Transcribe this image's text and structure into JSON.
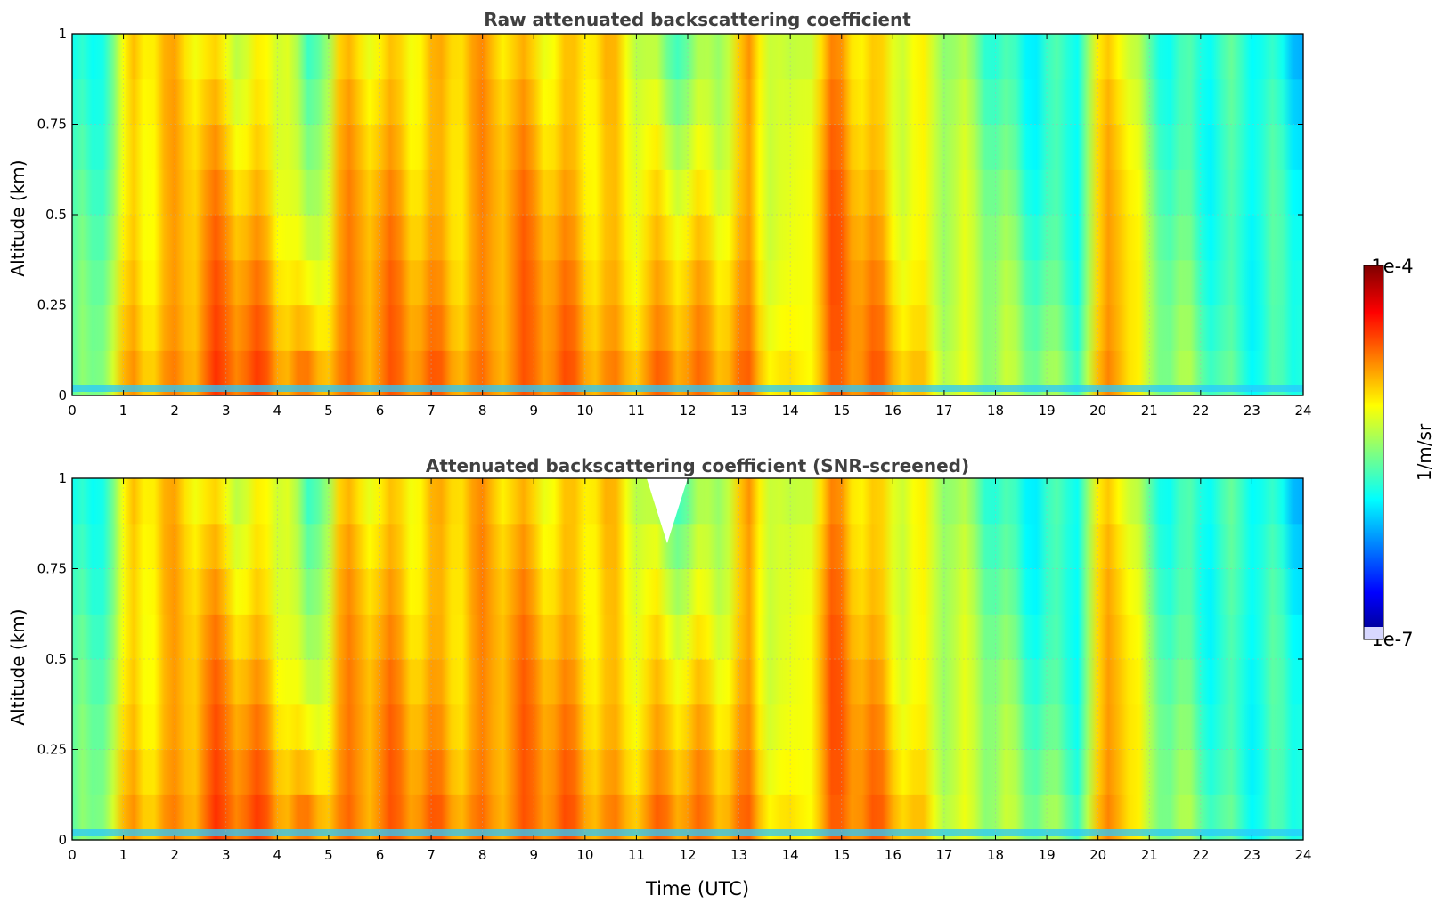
{
  "chart_data": [
    {
      "type": "heatmap",
      "title": "Raw attenuated backscattering coefficient",
      "ylabel": "Altitude (km)",
      "xlabel": "",
      "xlim": [
        0,
        24
      ],
      "ylim": [
        0,
        1
      ],
      "x_ticks": [
        "0",
        "1",
        "2",
        "3",
        "4",
        "5",
        "6",
        "7",
        "8",
        "9",
        "10",
        "11",
        "12",
        "13",
        "14",
        "15",
        "16",
        "17",
        "18",
        "19",
        "20",
        "21",
        "22",
        "23",
        "24"
      ],
      "y_ticks": [
        "0",
        "0.25",
        "0.5",
        "0.75",
        "1"
      ],
      "grid": true,
      "colormap": "jet",
      "log_scale": true,
      "profile": [
        {
          "t": 0.4,
          "surface": 4.6,
          "top": 4.0
        },
        {
          "t": 1.2,
          "surface": 7.0,
          "top": 6.6
        },
        {
          "t": 2.8,
          "surface": 8.1,
          "top": 6.2
        },
        {
          "t": 4.2,
          "surface": 7.3,
          "top": 6.2
        },
        {
          "t": 4.6,
          "surface": 7.8,
          "top": 3.5
        },
        {
          "t": 5.2,
          "surface": 7.8,
          "top": 6.2
        },
        {
          "t": 6.5,
          "surface": 7.3,
          "top": 6.8
        },
        {
          "t": 8.4,
          "surface": 7.8,
          "top": 6.6
        },
        {
          "t": 10.3,
          "surface": 7.2,
          "top": 6.8
        },
        {
          "t": 11.6,
          "surface": 8.1,
          "top": 4.5
        },
        {
          "t": 12.5,
          "surface": 7.0,
          "top": 5.6
        },
        {
          "t": 13.2,
          "surface": 7.4,
          "top": 6.9
        },
        {
          "t": 14.0,
          "surface": 6.6,
          "top": 4.8
        },
        {
          "t": 14.9,
          "surface": 7.6,
          "top": 7.4
        },
        {
          "t": 16.0,
          "surface": 7.2,
          "top": 6.3
        },
        {
          "t": 17.2,
          "surface": 6.2,
          "top": 5.0
        },
        {
          "t": 18.5,
          "surface": 5.0,
          "top": 4.2
        },
        {
          "t": 19.6,
          "surface": 5.0,
          "top": 4.0
        },
        {
          "t": 20.3,
          "surface": 8.3,
          "top": 6.8
        },
        {
          "t": 21.0,
          "surface": 5.2,
          "top": 4.6
        },
        {
          "t": 22.5,
          "surface": 4.6,
          "top": 4.1
        },
        {
          "t": 24.0,
          "surface": 4.4,
          "top": 3.4
        }
      ]
    },
    {
      "type": "heatmap",
      "title": "Attenuated backscattering coefficient (SNR-screened)",
      "ylabel": "Altitude (km)",
      "xlabel": "Time (UTC)",
      "xlim": [
        0,
        24
      ],
      "ylim": [
        0,
        1
      ],
      "x_ticks": [
        "0",
        "1",
        "2",
        "3",
        "4",
        "5",
        "6",
        "7",
        "8",
        "9",
        "10",
        "11",
        "12",
        "13",
        "14",
        "15",
        "16",
        "17",
        "18",
        "19",
        "20",
        "21",
        "22",
        "23",
        "24"
      ],
      "y_ticks": [
        "0",
        "0.25",
        "0.5",
        "0.75",
        "1"
      ],
      "grid": true,
      "colormap": "jet",
      "log_scale": true,
      "screened_region": {
        "t_start": 11.2,
        "t_end": 12.0,
        "alt_min": 0.82,
        "alt_max": 1.0
      }
    }
  ],
  "colorbar": {
    "label": "1/m/sr",
    "max_label": "1e-4",
    "min_label": "1e-7",
    "min": 1e-07,
    "max": 0.0001,
    "scale": "log"
  },
  "colors": {
    "title": "#404040",
    "grid": "#b0b0b0"
  }
}
